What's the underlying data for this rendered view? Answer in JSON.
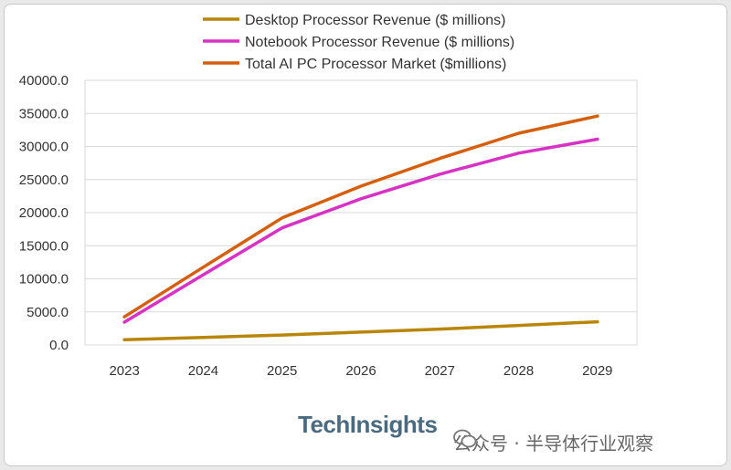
{
  "chart_data": {
    "type": "line",
    "categories": [
      "2023",
      "2024",
      "2025",
      "2026",
      "2027",
      "2028",
      "2029"
    ],
    "series": [
      {
        "name": "Desktop Processor Revenue ($ millions)",
        "color": "#b8860b",
        "values": [
          800,
          1150,
          1500,
          1950,
          2400,
          2950,
          3500
        ]
      },
      {
        "name": "Notebook Processor Revenue ($ millions)",
        "color": "#d633c4",
        "values": [
          3450,
          10600,
          17700,
          22100,
          25800,
          29000,
          31100
        ]
      },
      {
        "name": "Total AI  PC Processor Market ($millions)",
        "color": "#d45f0f",
        "values": [
          4250,
          11750,
          19200,
          24000,
          28200,
          32000,
          34600
        ]
      }
    ],
    "yticks": [
      "0.0",
      "5000.0",
      "10000.0",
      "15000.0",
      "20000.0",
      "25000.0",
      "30000.0",
      "35000.0",
      "40000.0"
    ],
    "ylim": [
      0,
      40000
    ],
    "grid": true,
    "legend_position": "top"
  },
  "branding": {
    "logo_text": "TechInsights",
    "watermark_text": "公众号 · 半导体行业观察",
    "watermark_icon": "wechat-icon"
  }
}
